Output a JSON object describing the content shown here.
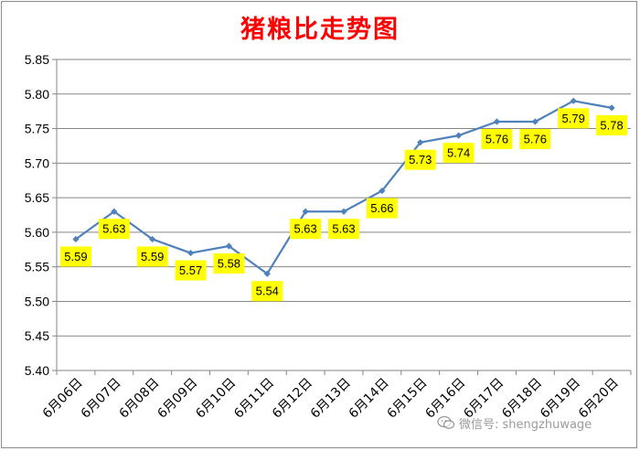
{
  "colors": {
    "title": "#ff0000",
    "line": "#4f81bd",
    "label_bg": "#ffff00",
    "axis": "#868686",
    "grid": "#868686"
  },
  "watermark": {
    "icon": "wechat-icon",
    "text": "微信号: shengzhuwage"
  },
  "chart_data": {
    "type": "line",
    "title": "猪粮比走势图",
    "xlabel": "",
    "ylabel": "",
    "categories": [
      "6月06日",
      "6月07日",
      "6月08日",
      "6月09日",
      "6月10日",
      "6月11日",
      "6月12日",
      "6月13日",
      "6月14日",
      "6月15日",
      "6月16日",
      "6月17日",
      "6月18日",
      "6月19日",
      "6月20日"
    ],
    "series": [
      {
        "values": [
          5.59,
          5.63,
          5.59,
          5.57,
          5.58,
          5.54,
          5.63,
          5.63,
          5.66,
          5.73,
          5.74,
          5.76,
          5.76,
          5.79,
          5.78
        ]
      }
    ],
    "data_labels": [
      "5.59",
      "5.63",
      "5.59",
      "5.57",
      "5.58",
      "5.54",
      "5.63",
      "5.63",
      "5.66",
      "5.73",
      "5.74",
      "5.76",
      "5.76",
      "5.79",
      "5.78"
    ],
    "ylim": [
      5.4,
      5.85
    ],
    "yticks": [
      "5.40",
      "5.45",
      "5.50",
      "5.55",
      "5.60",
      "5.65",
      "5.70",
      "5.75",
      "5.80",
      "5.85"
    ],
    "grid": true,
    "legend": "none"
  }
}
